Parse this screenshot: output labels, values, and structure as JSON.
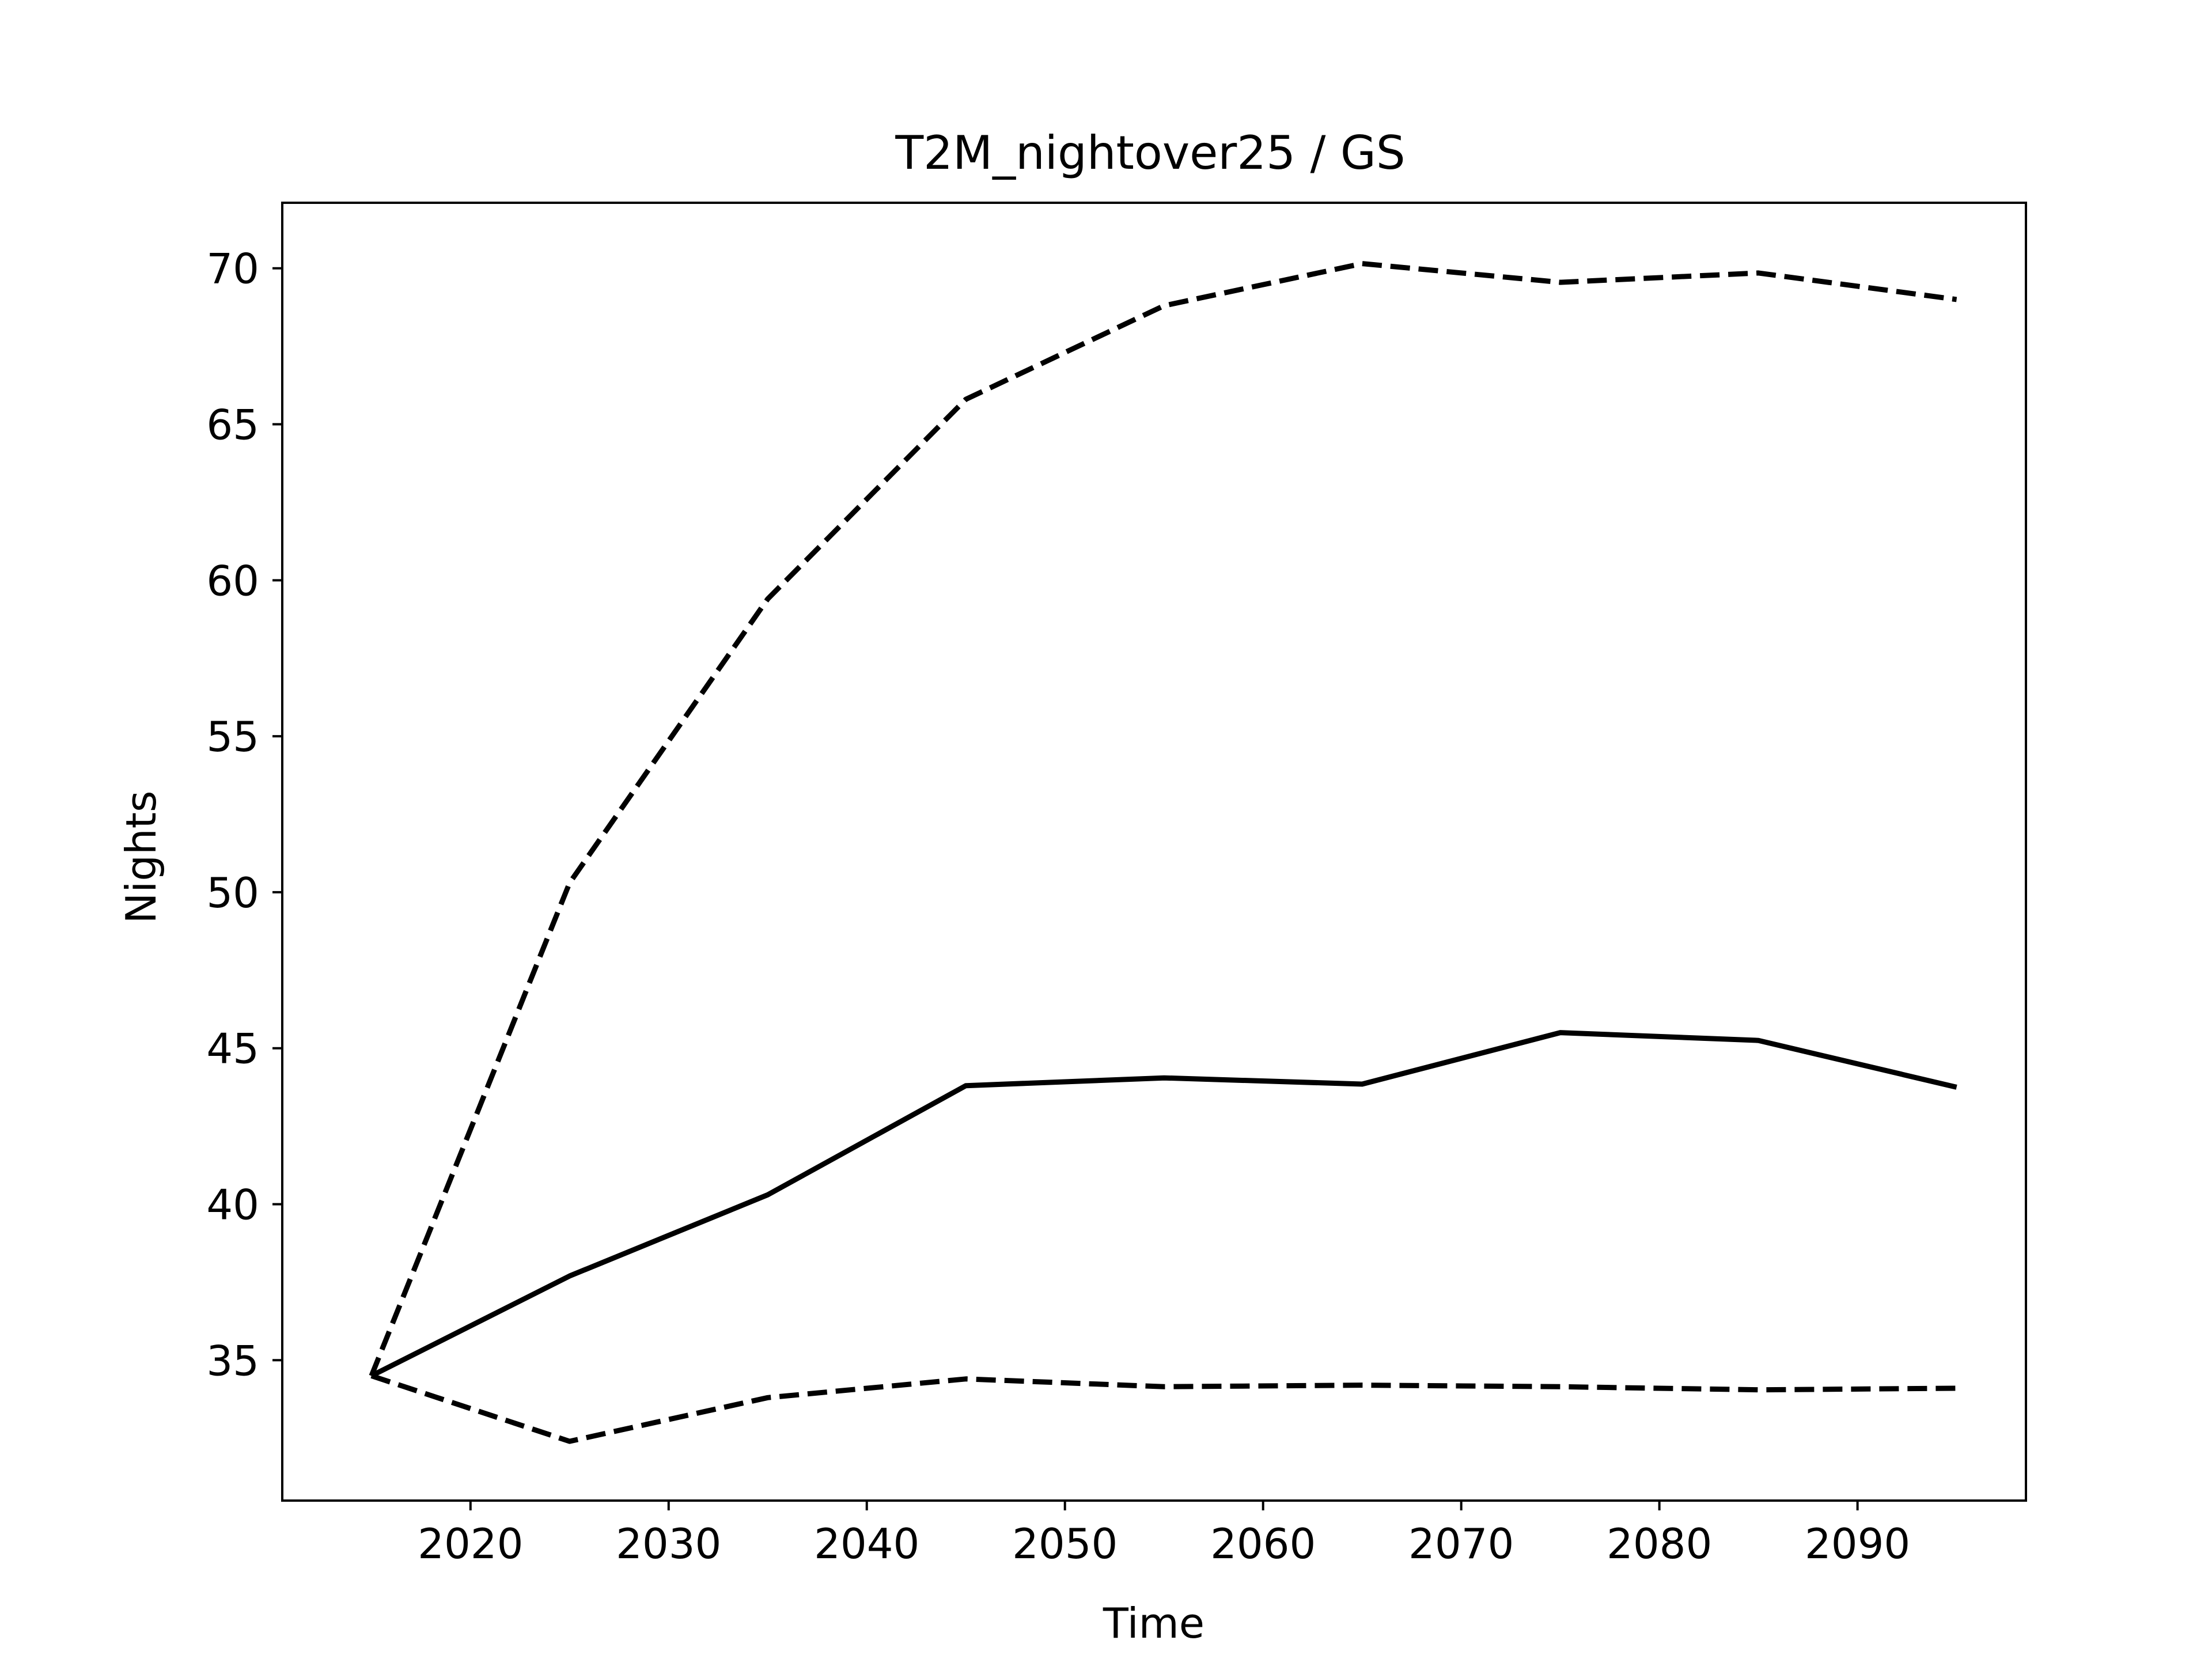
{
  "chart_data": {
    "type": "line",
    "title": "T2M_nightover25 / GS",
    "xlabel": "Time",
    "ylabel": "Nights",
    "x": [
      2015,
      2025,
      2035,
      2045,
      2055,
      2065,
      2075,
      2085,
      2095
    ],
    "xlim": [
      2010.5,
      2098.5
    ],
    "ylim": [
      30.5,
      72.1
    ],
    "xticks": [
      2020,
      2030,
      2040,
      2050,
      2060,
      2070,
      2080,
      2090
    ],
    "yticks": [
      35,
      40,
      45,
      50,
      55,
      60,
      65,
      70
    ],
    "grid": false,
    "legend": "none",
    "series": [
      {
        "style": "solid",
        "color": "#000000",
        "values": [
          34.5,
          37.7,
          40.3,
          43.8,
          44.05,
          43.85,
          45.5,
          45.25,
          43.75
        ]
      },
      {
        "style": "dashed",
        "color": "#000000",
        "values": [
          34.5,
          50.3,
          59.4,
          65.8,
          68.8,
          70.15,
          69.55,
          69.85,
          69.0
        ]
      },
      {
        "style": "dashed",
        "color": "#000000",
        "values": [
          34.5,
          32.4,
          33.8,
          34.4,
          34.15,
          34.2,
          34.15,
          34.05,
          34.1
        ]
      }
    ]
  }
}
